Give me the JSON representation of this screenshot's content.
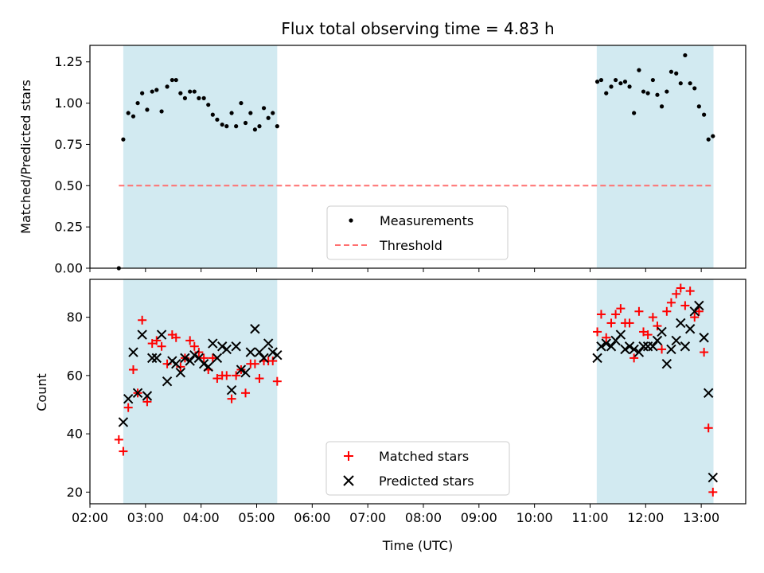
{
  "chart_data": [
    {
      "type": "scatter",
      "title": "Flux total observing time = 4.83 h",
      "xlabel": "",
      "ylabel": "Matched/Predicted stars",
      "xlim": [
        2.0,
        13.8
      ],
      "ylim": [
        0.0,
        1.35
      ],
      "yticks": [
        0.0,
        0.25,
        0.5,
        0.75,
        1.0,
        1.25
      ],
      "ytick_labels": [
        "0.00",
        "0.25",
        "0.50",
        "0.75",
        "1.00",
        "1.25"
      ],
      "shaded_spans": [
        [
          2.6,
          5.37
        ],
        [
          11.12,
          13.22
        ]
      ],
      "shade_color": "#add8e6",
      "threshold": {
        "name": "Threshold",
        "value": 0.5,
        "x_range": [
          2.52,
          13.22
        ],
        "color": "#ff7070"
      },
      "series": [
        {
          "name": "Measurements",
          "color": "#000000",
          "x": [
            2.52,
            2.6,
            2.69,
            2.78,
            2.86,
            2.94,
            3.03,
            3.12,
            3.2,
            3.29,
            3.39,
            3.48,
            3.55,
            3.63,
            3.71,
            3.8,
            3.88,
            3.96,
            4.05,
            4.13,
            4.21,
            4.29,
            4.38,
            4.46,
            4.55,
            4.63,
            4.72,
            4.8,
            4.89,
            4.97,
            5.05,
            5.13,
            5.21,
            5.29,
            5.37,
            11.13,
            11.2,
            11.29,
            11.38,
            11.46,
            11.55,
            11.63,
            11.71,
            11.79,
            11.88,
            11.96,
            12.04,
            12.13,
            12.21,
            12.29,
            12.38,
            12.46,
            12.55,
            12.63,
            12.71,
            12.8,
            12.88,
            12.96,
            13.05,
            13.13,
            13.21
          ],
          "values": [
            0.0,
            0.78,
            0.94,
            0.92,
            1.0,
            1.06,
            0.96,
            1.07,
            1.08,
            0.95,
            1.1,
            1.14,
            1.14,
            1.06,
            1.03,
            1.07,
            1.07,
            1.03,
            1.03,
            0.99,
            0.93,
            0.9,
            0.87,
            0.86,
            0.94,
            0.86,
            1.0,
            0.88,
            0.94,
            0.84,
            0.86,
            0.97,
            0.91,
            0.94,
            0.86,
            1.13,
            1.14,
            1.06,
            1.1,
            1.14,
            1.12,
            1.13,
            1.1,
            0.94,
            1.2,
            1.07,
            1.06,
            1.14,
            1.05,
            0.98,
            1.07,
            1.19,
            1.18,
            1.12,
            1.29,
            1.12,
            1.09,
            0.98,
            0.93,
            0.78,
            0.8
          ]
        }
      ],
      "legend": {
        "entries": [
          "Measurements",
          "Threshold"
        ],
        "placement": "lower-center"
      }
    },
    {
      "type": "scatter",
      "title": "",
      "xlabel": "Time (UTC)",
      "ylabel": "Count",
      "xlim": [
        2.0,
        13.8
      ],
      "ylim": [
        16,
        93
      ],
      "yticks": [
        20,
        40,
        60,
        80
      ],
      "ytick_labels": [
        "20",
        "40",
        "60",
        "80"
      ],
      "xticks": [
        2,
        3,
        4,
        5,
        6,
        7,
        8,
        9,
        10,
        11,
        12,
        13
      ],
      "xtick_labels": [
        "02:00",
        "03:00",
        "04:00",
        "05:00",
        "06:00",
        "07:00",
        "08:00",
        "09:00",
        "10:00",
        "11:00",
        "12:00",
        "13:00"
      ],
      "shaded_spans": [
        [
          2.6,
          5.37
        ],
        [
          11.12,
          13.22
        ]
      ],
      "series": [
        {
          "name": "Matched stars",
          "marker": "plus",
          "color": "#ff0000",
          "x": [
            2.52,
            2.6,
            2.69,
            2.78,
            2.86,
            2.94,
            3.03,
            3.12,
            3.2,
            3.29,
            3.39,
            3.48,
            3.55,
            3.63,
            3.71,
            3.8,
            3.88,
            3.96,
            4.05,
            4.13,
            4.21,
            4.29,
            4.38,
            4.46,
            4.55,
            4.63,
            4.72,
            4.8,
            4.89,
            4.97,
            5.05,
            5.13,
            5.21,
            5.29,
            5.37,
            11.13,
            11.2,
            11.29,
            11.38,
            11.46,
            11.55,
            11.63,
            11.71,
            11.79,
            11.88,
            11.96,
            12.04,
            12.13,
            12.21,
            12.29,
            12.38,
            12.46,
            12.55,
            12.63,
            12.71,
            12.8,
            12.88,
            12.96,
            13.05,
            13.13,
            13.21
          ],
          "values": [
            38,
            34,
            49,
            62,
            54,
            79,
            51,
            71,
            72,
            70,
            64,
            74,
            73,
            63,
            66,
            72,
            70,
            68,
            66,
            62,
            66,
            59,
            60,
            60,
            52,
            60,
            62,
            54,
            64,
            64,
            59,
            65,
            65,
            65,
            58,
            75,
            81,
            73,
            78,
            81,
            83,
            78,
            78,
            66,
            82,
            75,
            74,
            80,
            77,
            69,
            82,
            85,
            88,
            90,
            84,
            89,
            80,
            82,
            68,
            42,
            20
          ]
        },
        {
          "name": "Predicted stars",
          "marker": "x",
          "color": "#000000",
          "x": [
            2.6,
            2.69,
            2.78,
            2.86,
            2.94,
            3.03,
            3.12,
            3.2,
            3.29,
            3.39,
            3.48,
            3.55,
            3.63,
            3.71,
            3.8,
            3.88,
            3.96,
            4.05,
            4.13,
            4.21,
            4.29,
            4.38,
            4.46,
            4.55,
            4.63,
            4.72,
            4.8,
            4.89,
            4.97,
            5.05,
            5.13,
            5.21,
            5.29,
            5.37,
            11.13,
            11.2,
            11.29,
            11.38,
            11.46,
            11.55,
            11.63,
            11.71,
            11.79,
            11.88,
            11.96,
            12.04,
            12.13,
            12.21,
            12.29,
            12.38,
            12.46,
            12.55,
            12.63,
            12.71,
            12.8,
            12.88,
            12.96,
            13.05,
            13.13,
            13.21
          ],
          "values": [
            44,
            52,
            68,
            54,
            74,
            53,
            66,
            66,
            74,
            58,
            65,
            64,
            61,
            66,
            65,
            67,
            66,
            64,
            63,
            71,
            66,
            70,
            69,
            55,
            70,
            62,
            61,
            68,
            76,
            68,
            66,
            71,
            68,
            67,
            66,
            70,
            71,
            70,
            72,
            74,
            69,
            70,
            69,
            68,
            70,
            70,
            70,
            72,
            75,
            64,
            69,
            72,
            78,
            70,
            76,
            82,
            84,
            73,
            54,
            25
          ]
        }
      ],
      "legend": {
        "entries": [
          "Matched stars",
          "Predicted stars"
        ],
        "placement": "lower-center"
      }
    }
  ]
}
